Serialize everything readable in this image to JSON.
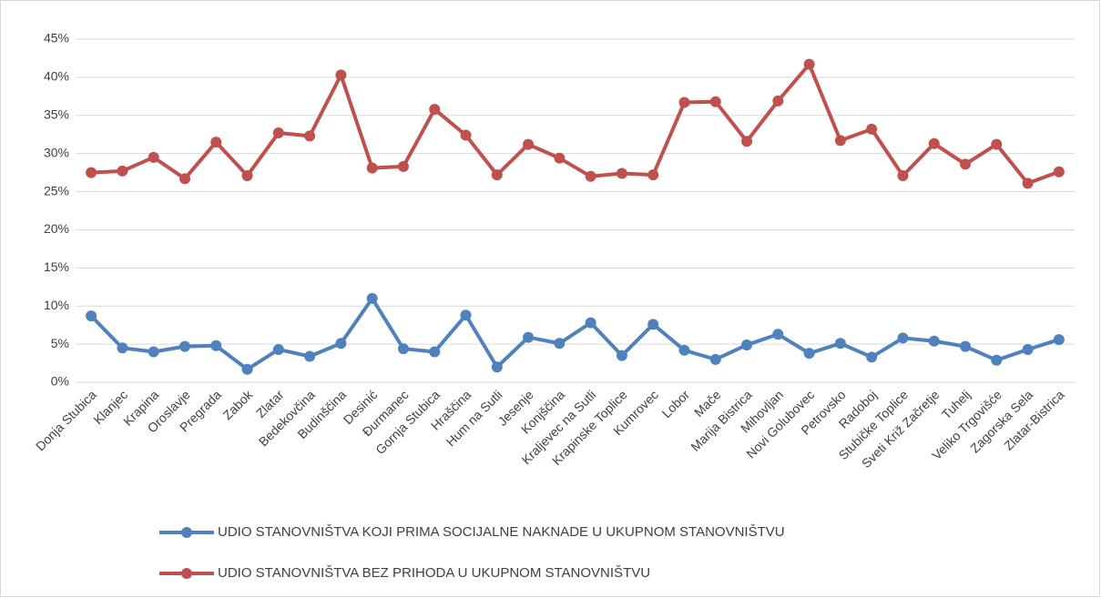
{
  "chart_data": {
    "type": "line",
    "categories": [
      "Donja Stubica",
      "Klanjec",
      "Krapina",
      "Oroslavje",
      "Pregrada",
      "Zabok",
      "Zlatar",
      "Bedekovčina",
      "Budinščina",
      "Desinić",
      "Đurmanec",
      "Gornja Stubica",
      "Hraščina",
      "Hum na Sutli",
      "Jesenje",
      "Konjščina",
      "Kraljevec na Sutli",
      "Krapinske Toplice",
      "Kumrovec",
      "Lobor",
      "Mače",
      "Marija Bistrica",
      "Mihovljan",
      "Novi Golubovec",
      "Petrovsko",
      "Radoboj",
      "Stubičke Toplice",
      "Sveti Križ Začretje",
      "Tuhelj",
      "Veliko Trgovišće",
      "Zagorska Sela",
      "Zlatar-Bistrica"
    ],
    "series": [
      {
        "name": "UDIO STANOVNIŠTVA KOJI PRIMA SOCIJALNE NAKNADE U UKUPNOM STANOVNIŠTVU",
        "color": "#4f81bd",
        "values": [
          8.7,
          4.5,
          4.0,
          4.7,
          4.8,
          1.7,
          4.3,
          3.4,
          5.1,
          11.0,
          4.4,
          4.0,
          8.8,
          2.0,
          5.9,
          5.1,
          7.8,
          3.5,
          7.6,
          4.2,
          3.0,
          4.9,
          6.3,
          3.8,
          5.1,
          3.3,
          5.8,
          5.4,
          4.7,
          2.9,
          4.3,
          5.6
        ]
      },
      {
        "name": "UDIO STANOVNIŠTVA BEZ PRIHODA U UKUPNOM STANOVNIŠTVU",
        "color": "#c0504d",
        "values": [
          27.5,
          27.7,
          29.5,
          26.7,
          31.5,
          27.1,
          32.7,
          32.3,
          40.3,
          28.1,
          28.3,
          35.8,
          32.4,
          27.2,
          31.2,
          29.4,
          27.0,
          27.4,
          27.2,
          36.7,
          36.8,
          31.6,
          36.9,
          41.7,
          31.7,
          33.2,
          27.1,
          31.3,
          28.6,
          31.2,
          26.1,
          27.6
        ]
      }
    ],
    "ylim": [
      0,
      45
    ],
    "yticks": [
      {
        "value": 0,
        "label": "0%"
      },
      {
        "value": 5,
        "label": "5%"
      },
      {
        "value": 10,
        "label": "10%"
      },
      {
        "value": 15,
        "label": "15%"
      },
      {
        "value": 20,
        "label": "20%"
      },
      {
        "value": 25,
        "label": "25%"
      },
      {
        "value": 30,
        "label": "30%"
      },
      {
        "value": 35,
        "label": "35%"
      },
      {
        "value": 40,
        "label": "40%"
      },
      {
        "value": 45,
        "label": "45%"
      }
    ],
    "grid": true,
    "legend": "bottom"
  }
}
